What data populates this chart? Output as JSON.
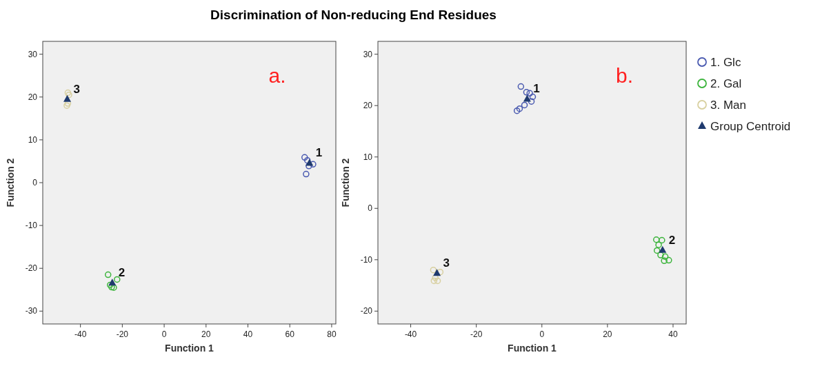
{
  "chart_data": [
    {
      "type": "scatter",
      "title": "Discrimination of Non-reducing End Residues",
      "xlabel": "Function 1",
      "ylabel": "Function 2",
      "xlim": [
        -58,
        82
      ],
      "ylim": [
        -33,
        33
      ],
      "xticks": [
        -40,
        -20,
        0,
        20,
        40,
        60,
        80
      ],
      "yticks": [
        -30,
        -20,
        -10,
        0,
        10,
        20,
        30
      ],
      "grid": false,
      "legend": false,
      "annotations": [
        "a.",
        {
          "text": "1",
          "x": 69.4,
          "y": 4.6
        },
        {
          "text": "2",
          "x": -24.8,
          "y": -23.4
        },
        {
          "text": "3",
          "x": -46.3,
          "y": 19.5
        }
      ],
      "series": [
        {
          "color": "#4a5ab0",
          "marker": "circle",
          "x": [
            67.1,
            68.4,
            71.1,
            69.1,
            67.8
          ],
          "values": [
            5.9,
            5.2,
            4.3,
            3.9,
            2.0
          ]
        },
        {
          "color": "#3cb43c",
          "marker": "circle",
          "x": [
            -26.8,
            -22.5,
            -25.8,
            -24.1,
            -25.1
          ],
          "values": [
            -21.5,
            -22.6,
            -23.9,
            -24.5,
            -24.4
          ]
        },
        {
          "color": "#d8d0a0",
          "marker": "circle",
          "x": [
            -46,
            -45.5,
            -46.5,
            -46
          ],
          "values": [
            21,
            20.5,
            18,
            18.5
          ]
        },
        {
          "color": "#1f3a6e",
          "marker": "triangle",
          "x": [
            69.4,
            -24.8,
            -46.3
          ],
          "values": [
            4.6,
            -23.4,
            19.5
          ]
        }
      ]
    },
    {
      "type": "scatter",
      "xlabel": "Function 1",
      "ylabel": "Function 2",
      "xlim": [
        -50,
        44
      ],
      "ylim": [
        -22.5,
        32.5
      ],
      "xticks": [
        -40,
        -20,
        0,
        20,
        40
      ],
      "yticks": [
        -20,
        -10,
        0,
        10,
        20,
        30
      ],
      "grid": false,
      "legend": "right",
      "annotations": [
        "b.",
        {
          "text": "1",
          "x": -4.5,
          "y": 21.3
        },
        {
          "text": "2",
          "x": 36.8,
          "y": -8.1
        },
        {
          "text": "3",
          "x": -32.0,
          "y": -12.6
        }
      ],
      "series": [
        {
          "name": "1. Glc",
          "color": "#4a5ab0",
          "marker": "circle",
          "x": [
            -6.4,
            -4.7,
            -3.7,
            -2.8,
            -3.2,
            -5.3,
            -6.8,
            -7.6
          ],
          "values": [
            23.7,
            22.6,
            22.4,
            21.7,
            20.8,
            20.1,
            19.4,
            19.0
          ]
        },
        {
          "name": "2. Gal",
          "color": "#3cb43c",
          "marker": "circle",
          "x": [
            34.9,
            36.6,
            35.6,
            35.1,
            36.2,
            37.6,
            38.7,
            37.3
          ],
          "values": [
            -6.1,
            -6.2,
            -7.1,
            -8.2,
            -9.1,
            -9.4,
            -10.1,
            -10.2
          ]
        },
        {
          "name": "3. Man",
          "color": "#d8d0a0",
          "marker": "circle",
          "x": [
            -33.1,
            -31.0,
            -32.5,
            -31.8,
            -32.9
          ],
          "values": [
            -12.0,
            -12.4,
            -13.5,
            -14.1,
            -14.1
          ]
        },
        {
          "name": "Group Centroid",
          "color": "#1f3a6e",
          "marker": "triangle",
          "x": [
            -4.5,
            36.8,
            -32.0
          ],
          "values": [
            21.3,
            -8.1,
            -12.6
          ]
        }
      ]
    }
  ]
}
